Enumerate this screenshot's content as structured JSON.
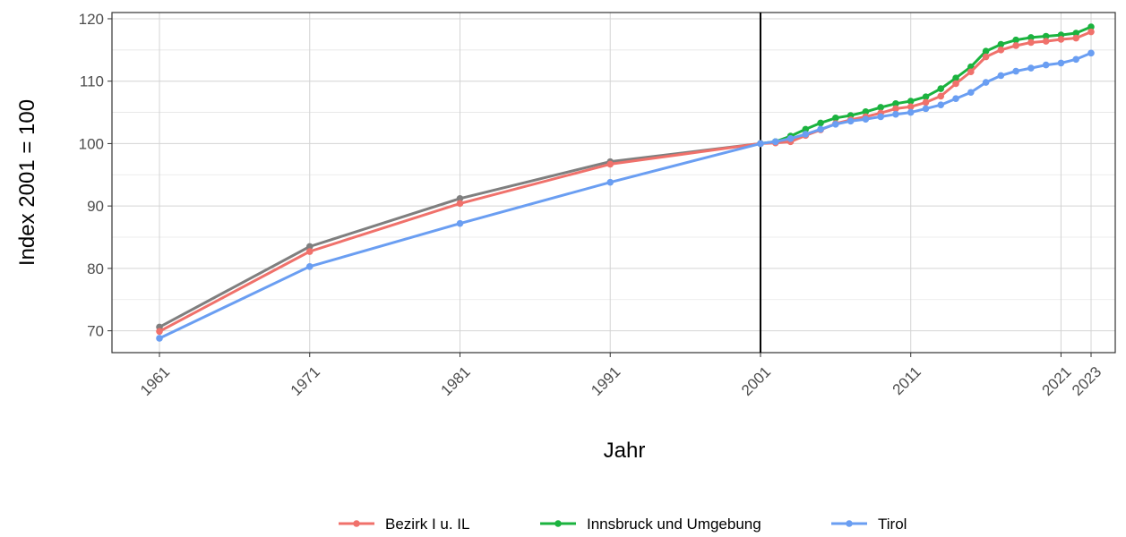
{
  "chart_data": {
    "type": "line",
    "title": "",
    "xlabel": "Jahr",
    "ylabel": "Index 2001 = 100",
    "xlim": [
      1961,
      2023
    ],
    "ylim": [
      66.5,
      121
    ],
    "x_ticks": [
      1961,
      1971,
      1981,
      1991,
      2001,
      2011,
      2021,
      2023
    ],
    "x_tick_labels": [
      "1961",
      "1971",
      "1981",
      "1991",
      "2001",
      "2011",
      "2021",
      "2023"
    ],
    "y_ticks": [
      70,
      80,
      90,
      100,
      110,
      120
    ],
    "y_tick_labels": [
      "70",
      "80",
      "90",
      "100",
      "110",
      "120"
    ],
    "grid": true,
    "reference_line_x": 2001,
    "legend_position": "bottom",
    "series": [
      {
        "id": "unlabeled_grey",
        "color": "#7f7f7f",
        "x": [
          1961,
          1971,
          1981,
          1991,
          2001
        ],
        "values": [
          70.6,
          83.5,
          91.2,
          97.1,
          100.0
        ]
      },
      {
        "name": "Innsbruck und Umgebung",
        "color": "#1bb33f",
        "x": [
          2001,
          2002,
          2003,
          2004,
          2005,
          2006,
          2007,
          2008,
          2009,
          2010,
          2011,
          2012,
          2013,
          2014,
          2015,
          2016,
          2017,
          2018,
          2019,
          2020,
          2021,
          2022,
          2023
        ],
        "values": [
          100.0,
          100.3,
          101.2,
          102.3,
          103.3,
          104.1,
          104.5,
          105.1,
          105.8,
          106.4,
          106.8,
          107.5,
          108.8,
          110.5,
          112.3,
          114.8,
          115.9,
          116.6,
          117.0,
          117.2,
          117.4,
          117.7,
          118.7
        ]
      },
      {
        "name": "Bezirk I u. IL",
        "color": "#f0716b",
        "x": [
          1961,
          1971,
          1981,
          1991,
          2001,
          2002,
          2003,
          2004,
          2005,
          2006,
          2007,
          2008,
          2009,
          2010,
          2011,
          2012,
          2013,
          2014,
          2015,
          2016,
          2017,
          2018,
          2019,
          2020,
          2021,
          2022,
          2023
        ],
        "values": [
          69.9,
          82.7,
          90.4,
          96.7,
          100.0,
          100.1,
          100.3,
          101.3,
          102.2,
          103.2,
          103.8,
          104.3,
          104.9,
          105.6,
          105.9,
          106.6,
          107.6,
          109.6,
          111.5,
          113.9,
          115.0,
          115.7,
          116.2,
          116.4,
          116.7,
          116.9,
          117.9
        ]
      },
      {
        "name": "Tirol",
        "color": "#6a9ef2",
        "x": [
          1961,
          1971,
          1981,
          1991,
          2001,
          2002,
          2003,
          2004,
          2005,
          2006,
          2007,
          2008,
          2009,
          2010,
          2011,
          2012,
          2013,
          2014,
          2015,
          2016,
          2017,
          2018,
          2019,
          2020,
          2021,
          2022,
          2023
        ],
        "values": [
          68.8,
          80.3,
          87.2,
          93.8,
          100.0,
          100.3,
          100.8,
          101.5,
          102.3,
          103.1,
          103.6,
          103.9,
          104.3,
          104.7,
          105.0,
          105.6,
          106.2,
          107.2,
          108.2,
          109.8,
          110.9,
          111.6,
          112.1,
          112.6,
          112.9,
          113.5,
          114.5
        ]
      }
    ],
    "legend": [
      {
        "label": "Bezirk I u. IL",
        "color": "#f0716b"
      },
      {
        "label": "Innsbruck und Umgebung",
        "color": "#1bb33f"
      },
      {
        "label": "Tirol",
        "color": "#6a9ef2"
      }
    ]
  }
}
